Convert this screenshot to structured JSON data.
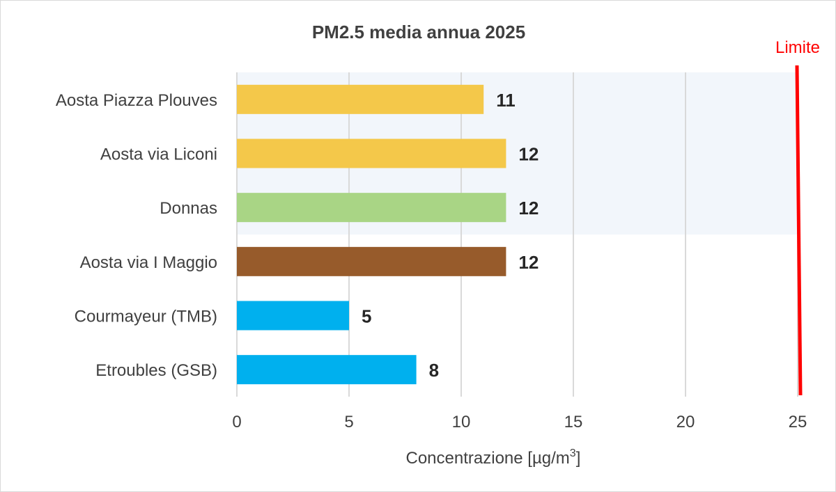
{
  "chart_data": {
    "type": "bar",
    "orientation": "horizontal",
    "title": "PM2.5 media annua 2025",
    "categories": [
      "Aosta Piazza Plouves",
      "Aosta via Liconi",
      "Donnas",
      "Aosta via I Maggio",
      "Courmayeur (TMB)",
      "Etroubles (GSB)"
    ],
    "values": [
      11,
      12,
      12,
      12,
      5,
      8
    ],
    "colors": [
      "#f4c84a",
      "#f4c84a",
      "#a9d585",
      "#975b2b",
      "#00b0ee",
      "#00b0ee"
    ],
    "xlabel": "Concentrazione [µg/m",
    "xlabel_superscript": "3",
    "xlabel_suffix": "]",
    "xlim": [
      0,
      25
    ],
    "xticks": [
      "0",
      "5",
      "10",
      "15",
      "20",
      "25"
    ],
    "grid": true,
    "limit": {
      "value": 25,
      "label": "Limite",
      "color": "#ff0000"
    },
    "highlight_band": {
      "from_category": "Aosta Piazza Plouves",
      "to_category": "Donnas",
      "color": "#f2f6fb"
    }
  }
}
